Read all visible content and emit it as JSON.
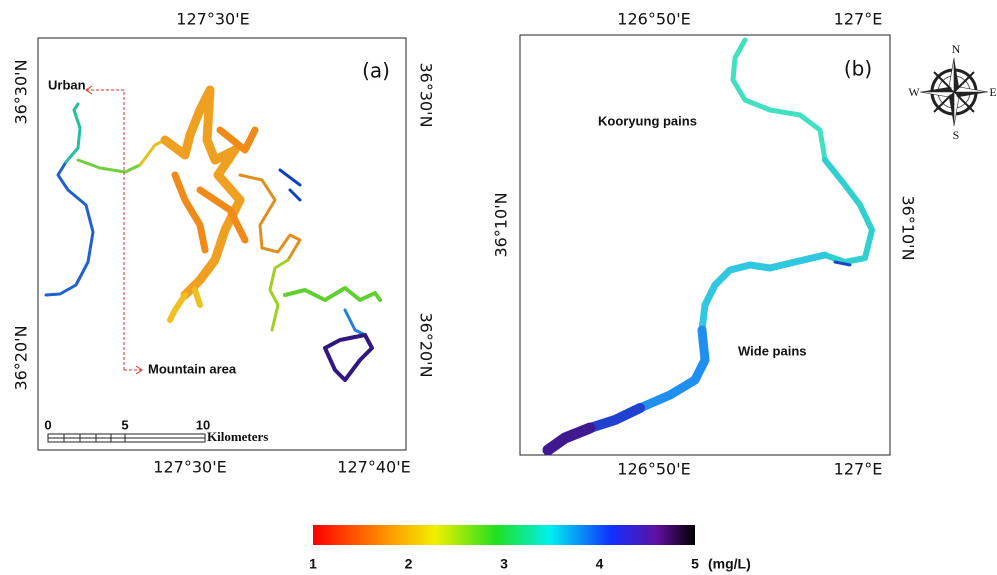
{
  "panels": [
    {
      "label": "(a)",
      "top_ticks": [
        "127°30'E"
      ],
      "bottom_ticks": [
        "127°30'E",
        "127°40'E"
      ],
      "left_ticks": [
        "36°30'N",
        "36°20'N"
      ],
      "right_ticks": [
        "36°30'N",
        "36°20'N"
      ],
      "annotations": [
        "Urban",
        "Mountain area"
      ],
      "scale_bar": {
        "ticks": [
          "0",
          "5",
          "10"
        ],
        "unit": "Kilometers"
      }
    },
    {
      "label": "(b)",
      "top_ticks": [
        "126°50'E",
        "127°E"
      ],
      "bottom_ticks": [
        "126°50'E",
        "127°E"
      ],
      "left_ticks": [
        "36°10'N"
      ],
      "right_ticks": [
        "36°10'N"
      ],
      "annotations": [
        "Kooryung pains",
        "Wide pains"
      ]
    }
  ],
  "compass": {
    "north": "N",
    "east": "E",
    "south": "S",
    "west": "W"
  },
  "colorbar": {
    "ticks": [
      1,
      2,
      3,
      4,
      5
    ],
    "unit": "(mg/L)"
  }
}
